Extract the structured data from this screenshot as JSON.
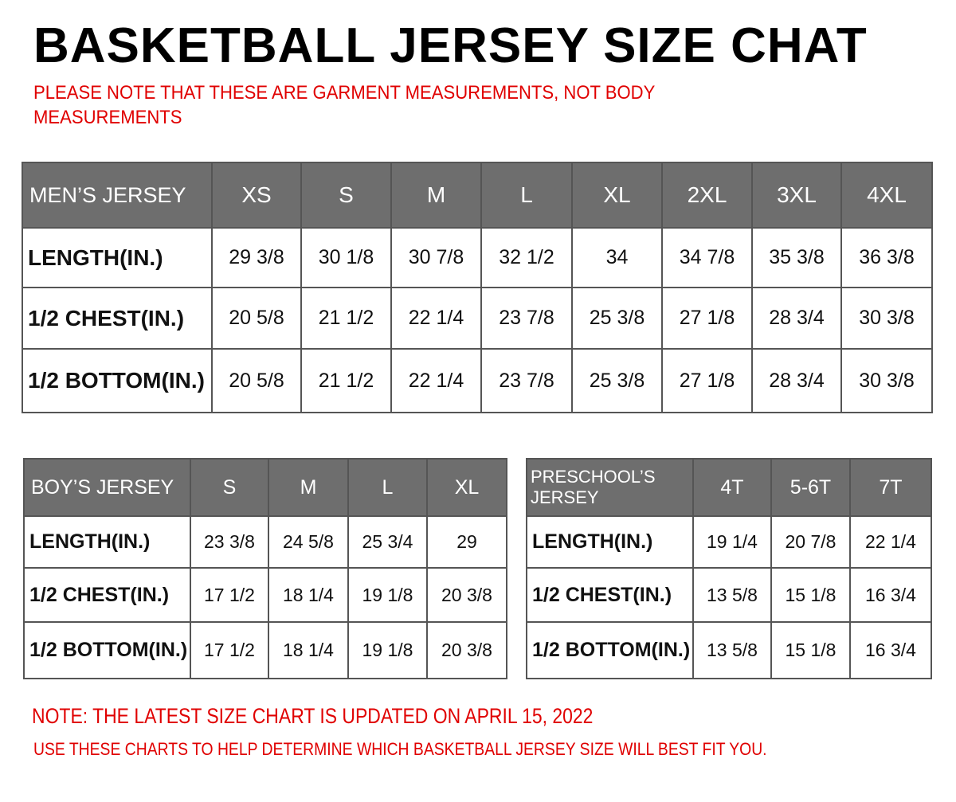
{
  "title": "BASKETBALL JERSEY SIZE CHAT",
  "note_top_1": "PLEASE NOTE THAT THESE ARE GARMENT MEASUREMENTS, NOT BODY",
  "note_top_2": "MEASUREMENTS",
  "mens": {
    "header": [
      "MEN’S JERSEY",
      "XS",
      "S",
      "M",
      "L",
      "XL",
      "2XL",
      "3XL",
      "4XL"
    ],
    "rows": [
      [
        "LENGTH(IN.)",
        "29 3/8",
        "30 1/8",
        "30 7/8",
        "32 1/2",
        "34",
        "34 7/8",
        "35 3/8",
        "36 3/8"
      ],
      [
        "1/2 CHEST(IN.)",
        "20 5/8",
        "21 1/2",
        "22 1/4",
        "23 7/8",
        "25 3/8",
        "27 1/8",
        "28 3/4",
        "30 3/8"
      ],
      [
        "1/2 BOTTOM(IN.)",
        "20 5/8",
        "21 1/2",
        "22 1/4",
        "23 7/8",
        "25 3/8",
        "27 1/8",
        "28 3/4",
        "30 3/8"
      ]
    ]
  },
  "boys": {
    "header": [
      "BOY’S JERSEY",
      "S",
      "M",
      "L",
      "XL"
    ],
    "rows": [
      [
        "LENGTH(IN.)",
        "23 3/8",
        "24 5/8",
        "25 3/4",
        "29"
      ],
      [
        "1/2 CHEST(IN.)",
        "17 1/2",
        "18 1/4",
        "19 1/8",
        "20 3/8"
      ],
      [
        "1/2 BOTTOM(IN.)",
        "17 1/2",
        "18 1/4",
        "19 1/8",
        "20 3/8"
      ]
    ]
  },
  "preschool": {
    "header": [
      "PRESCHOOL’S JERSEY",
      "4T",
      "5-6T",
      "7T"
    ],
    "rows": [
      [
        "LENGTH(IN.)",
        "19 1/4",
        "20 7/8",
        "22 1/4"
      ],
      [
        "1/2 CHEST(IN.)",
        "13 5/8",
        "15 1/8",
        "16 3/4"
      ],
      [
        "1/2 BOTTOM(IN.)",
        "13 5/8",
        "15 1/8",
        "16 3/4"
      ]
    ]
  },
  "note_bottom_1": "NOTE: THE LATEST SIZE CHART IS UPDATED ON APRIL 15, 2022",
  "note_bottom_2": "USE THESE CHARTS TO HELP DETERMINE WHICH  BASKETBALL JERSEY  SIZE WILL BEST FIT YOU.",
  "colors": {
    "header_bg": "#6e6e6e",
    "note": "#e00000"
  }
}
